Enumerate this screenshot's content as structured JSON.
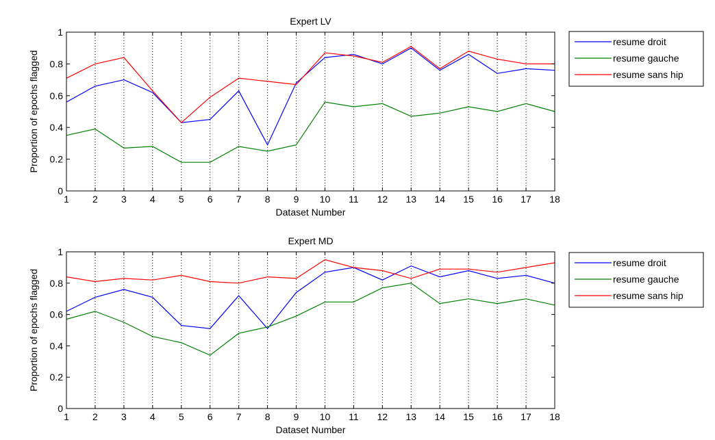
{
  "chart_data": [
    {
      "type": "line",
      "title": "Expert LV",
      "xlabel": "Dataset Number",
      "ylabel": "Proportion of epochs flagged",
      "xlim": [
        1,
        18
      ],
      "ylim": [
        0,
        1
      ],
      "xticks": [
        1,
        2,
        3,
        4,
        5,
        6,
        7,
        8,
        9,
        10,
        11,
        12,
        13,
        14,
        15,
        16,
        17,
        18
      ],
      "yticks": [
        0,
        0.2,
        0.4,
        0.6,
        0.8,
        1
      ],
      "ytick_labels": [
        "0",
        "0.2",
        "0.4",
        "0.6",
        "0.8",
        "1"
      ],
      "vertical_dotted_gridlines": true,
      "legend_position": "outside-right-top",
      "x": [
        1,
        2,
        3,
        4,
        5,
        6,
        7,
        8,
        9,
        10,
        11,
        12,
        13,
        14,
        15,
        16,
        17,
        18
      ],
      "series": [
        {
          "name": "resume droit",
          "color": "#0000ff",
          "values": [
            0.56,
            0.66,
            0.7,
            0.62,
            0.43,
            0.45,
            0.63,
            0.29,
            0.68,
            0.84,
            0.86,
            0.8,
            0.9,
            0.76,
            0.86,
            0.74,
            0.77,
            0.76
          ]
        },
        {
          "name": "resume gauche",
          "color": "#008000",
          "values": [
            0.35,
            0.39,
            0.27,
            0.28,
            0.18,
            0.18,
            0.28,
            0.25,
            0.29,
            0.56,
            0.53,
            0.55,
            0.47,
            0.49,
            0.53,
            0.5,
            0.55,
            0.5
          ]
        },
        {
          "name": "resume sans hip",
          "color": "#ff0000",
          "values": [
            0.71,
            0.8,
            0.84,
            0.63,
            0.43,
            0.59,
            0.71,
            0.69,
            0.67,
            0.87,
            0.85,
            0.81,
            0.91,
            0.77,
            0.88,
            0.83,
            0.8,
            0.8
          ]
        }
      ]
    },
    {
      "type": "line",
      "title": "Expert MD",
      "xlabel": "Dataset Number",
      "ylabel": "Proportion of epochs flagged",
      "xlim": [
        1,
        18
      ],
      "ylim": [
        0,
        1
      ],
      "xticks": [
        1,
        2,
        3,
        4,
        5,
        6,
        7,
        8,
        9,
        10,
        11,
        12,
        13,
        14,
        15,
        16,
        17,
        18
      ],
      "yticks": [
        0,
        0.2,
        0.4,
        0.6,
        0.8,
        1
      ],
      "ytick_labels": [
        "0",
        "0.2",
        "0.4",
        "0.6",
        "0.8",
        "1"
      ],
      "vertical_dotted_gridlines": true,
      "legend_position": "outside-right-top",
      "x": [
        1,
        2,
        3,
        4,
        5,
        6,
        7,
        8,
        9,
        10,
        11,
        12,
        13,
        14,
        15,
        16,
        17,
        18
      ],
      "series": [
        {
          "name": "resume droit",
          "color": "#0000ff",
          "values": [
            0.62,
            0.71,
            0.76,
            0.71,
            0.53,
            0.51,
            0.72,
            0.51,
            0.74,
            0.87,
            0.9,
            0.82,
            0.91,
            0.84,
            0.88,
            0.83,
            0.85,
            0.8
          ]
        },
        {
          "name": "resume gauche",
          "color": "#008000",
          "values": [
            0.57,
            0.62,
            0.55,
            0.46,
            0.42,
            0.34,
            0.48,
            0.52,
            0.59,
            0.68,
            0.68,
            0.77,
            0.8,
            0.67,
            0.7,
            0.67,
            0.7,
            0.66
          ]
        },
        {
          "name": "resume sans hip",
          "color": "#ff0000",
          "values": [
            0.84,
            0.81,
            0.83,
            0.82,
            0.85,
            0.81,
            0.8,
            0.84,
            0.83,
            0.95,
            0.9,
            0.88,
            0.83,
            0.89,
            0.89,
            0.87,
            0.9,
            0.93
          ]
        }
      ]
    }
  ]
}
